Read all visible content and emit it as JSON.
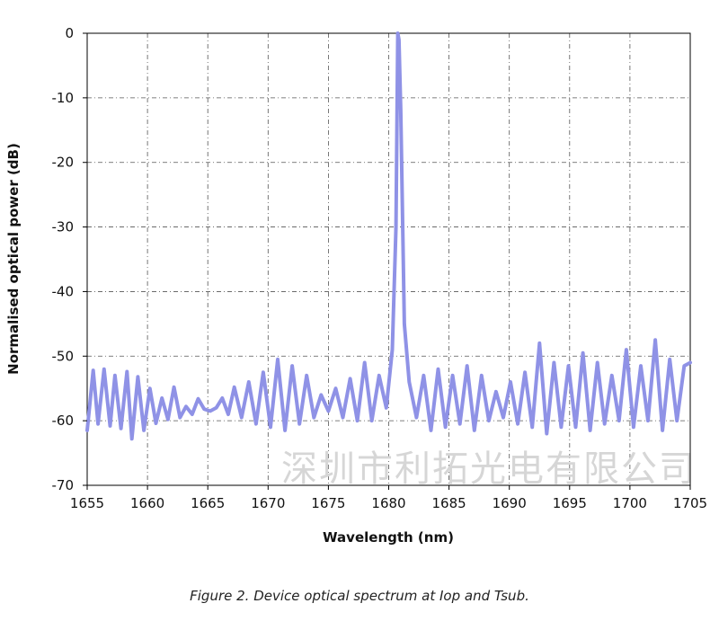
{
  "caption": "Figure 2. Device optical spectrum at Iop and Tsub.",
  "watermark": "深圳市利拓光电有限公司",
  "chart_data": {
    "type": "line",
    "title": "",
    "xlabel": "Wavelength (nm)",
    "ylabel": "Normalised optical power (dB)",
    "xlim": [
      1655,
      1705
    ],
    "ylim": [
      -70,
      0
    ],
    "xticks": [
      "1655",
      "1660",
      "1665",
      "1670",
      "1675",
      "1680",
      "1685",
      "1690",
      "1695",
      "1700",
      "1705"
    ],
    "yticks": [
      "0",
      "-10",
      "-20",
      "-30",
      "-40",
      "-50",
      "-60",
      "-70"
    ],
    "grid": true,
    "line_color": "#8f92e6",
    "series": [
      {
        "name": "",
        "x": [
          1655.0,
          1655.5,
          1655.9,
          1656.4,
          1656.9,
          1657.3,
          1657.8,
          1658.3,
          1658.7,
          1659.2,
          1659.7,
          1660.2,
          1660.7,
          1661.2,
          1661.7,
          1662.2,
          1662.7,
          1663.2,
          1663.7,
          1664.2,
          1664.7,
          1665.2,
          1665.7,
          1666.2,
          1666.7,
          1667.2,
          1667.8,
          1668.4,
          1669.0,
          1669.6,
          1670.2,
          1670.8,
          1671.4,
          1672.0,
          1672.6,
          1673.2,
          1673.8,
          1674.4,
          1675.0,
          1675.6,
          1676.2,
          1676.8,
          1677.4,
          1678.0,
          1678.6,
          1679.2,
          1679.8,
          1680.3,
          1680.6,
          1680.75,
          1680.85,
          1681.0,
          1681.3,
          1681.7,
          1682.3,
          1682.9,
          1683.5,
          1684.1,
          1684.7,
          1685.3,
          1685.9,
          1686.5,
          1687.1,
          1687.7,
          1688.3,
          1688.9,
          1689.5,
          1690.1,
          1690.7,
          1691.3,
          1691.9,
          1692.5,
          1693.1,
          1693.7,
          1694.3,
          1694.9,
          1695.5,
          1696.1,
          1696.7,
          1697.3,
          1697.9,
          1698.5,
          1699.1,
          1699.7,
          1700.3,
          1700.9,
          1701.5,
          1702.1,
          1702.7,
          1703.3,
          1703.9,
          1704.5,
          1705.0
        ],
        "y": [
          -61.5,
          -52.2,
          -60.5,
          -52.0,
          -60.8,
          -53.0,
          -61.2,
          -52.4,
          -62.8,
          -53.2,
          -61.5,
          -55.0,
          -60.4,
          -56.5,
          -59.8,
          -54.8,
          -59.5,
          -57.8,
          -59.0,
          -56.6,
          -58.2,
          -58.5,
          -58.0,
          -56.5,
          -59.0,
          -54.8,
          -59.5,
          -54.0,
          -60.5,
          -52.5,
          -61.0,
          -50.5,
          -61.5,
          -51.5,
          -60.5,
          -53.0,
          -59.5,
          -56.0,
          -58.5,
          -55.0,
          -59.5,
          -53.5,
          -60.0,
          -51.0,
          -60.0,
          -53.0,
          -58.0,
          -49.0,
          -30.0,
          0.0,
          -1.0,
          -12.0,
          -45.0,
          -54.0,
          -59.5,
          -53.0,
          -61.5,
          -52.0,
          -61.0,
          -53.0,
          -60.5,
          -51.5,
          -61.5,
          -53.0,
          -60.0,
          -55.5,
          -59.5,
          -54.0,
          -60.5,
          -52.5,
          -61.0,
          -48.0,
          -62.0,
          -51.0,
          -61.0,
          -51.5,
          -61.0,
          -49.5,
          -61.5,
          -51.0,
          -60.5,
          -53.0,
          -60.0,
          -49.0,
          -61.0,
          -51.5,
          -60.0,
          -47.5,
          -61.5,
          -50.5,
          -60.0,
          -51.5,
          -51.0
        ]
      }
    ]
  }
}
